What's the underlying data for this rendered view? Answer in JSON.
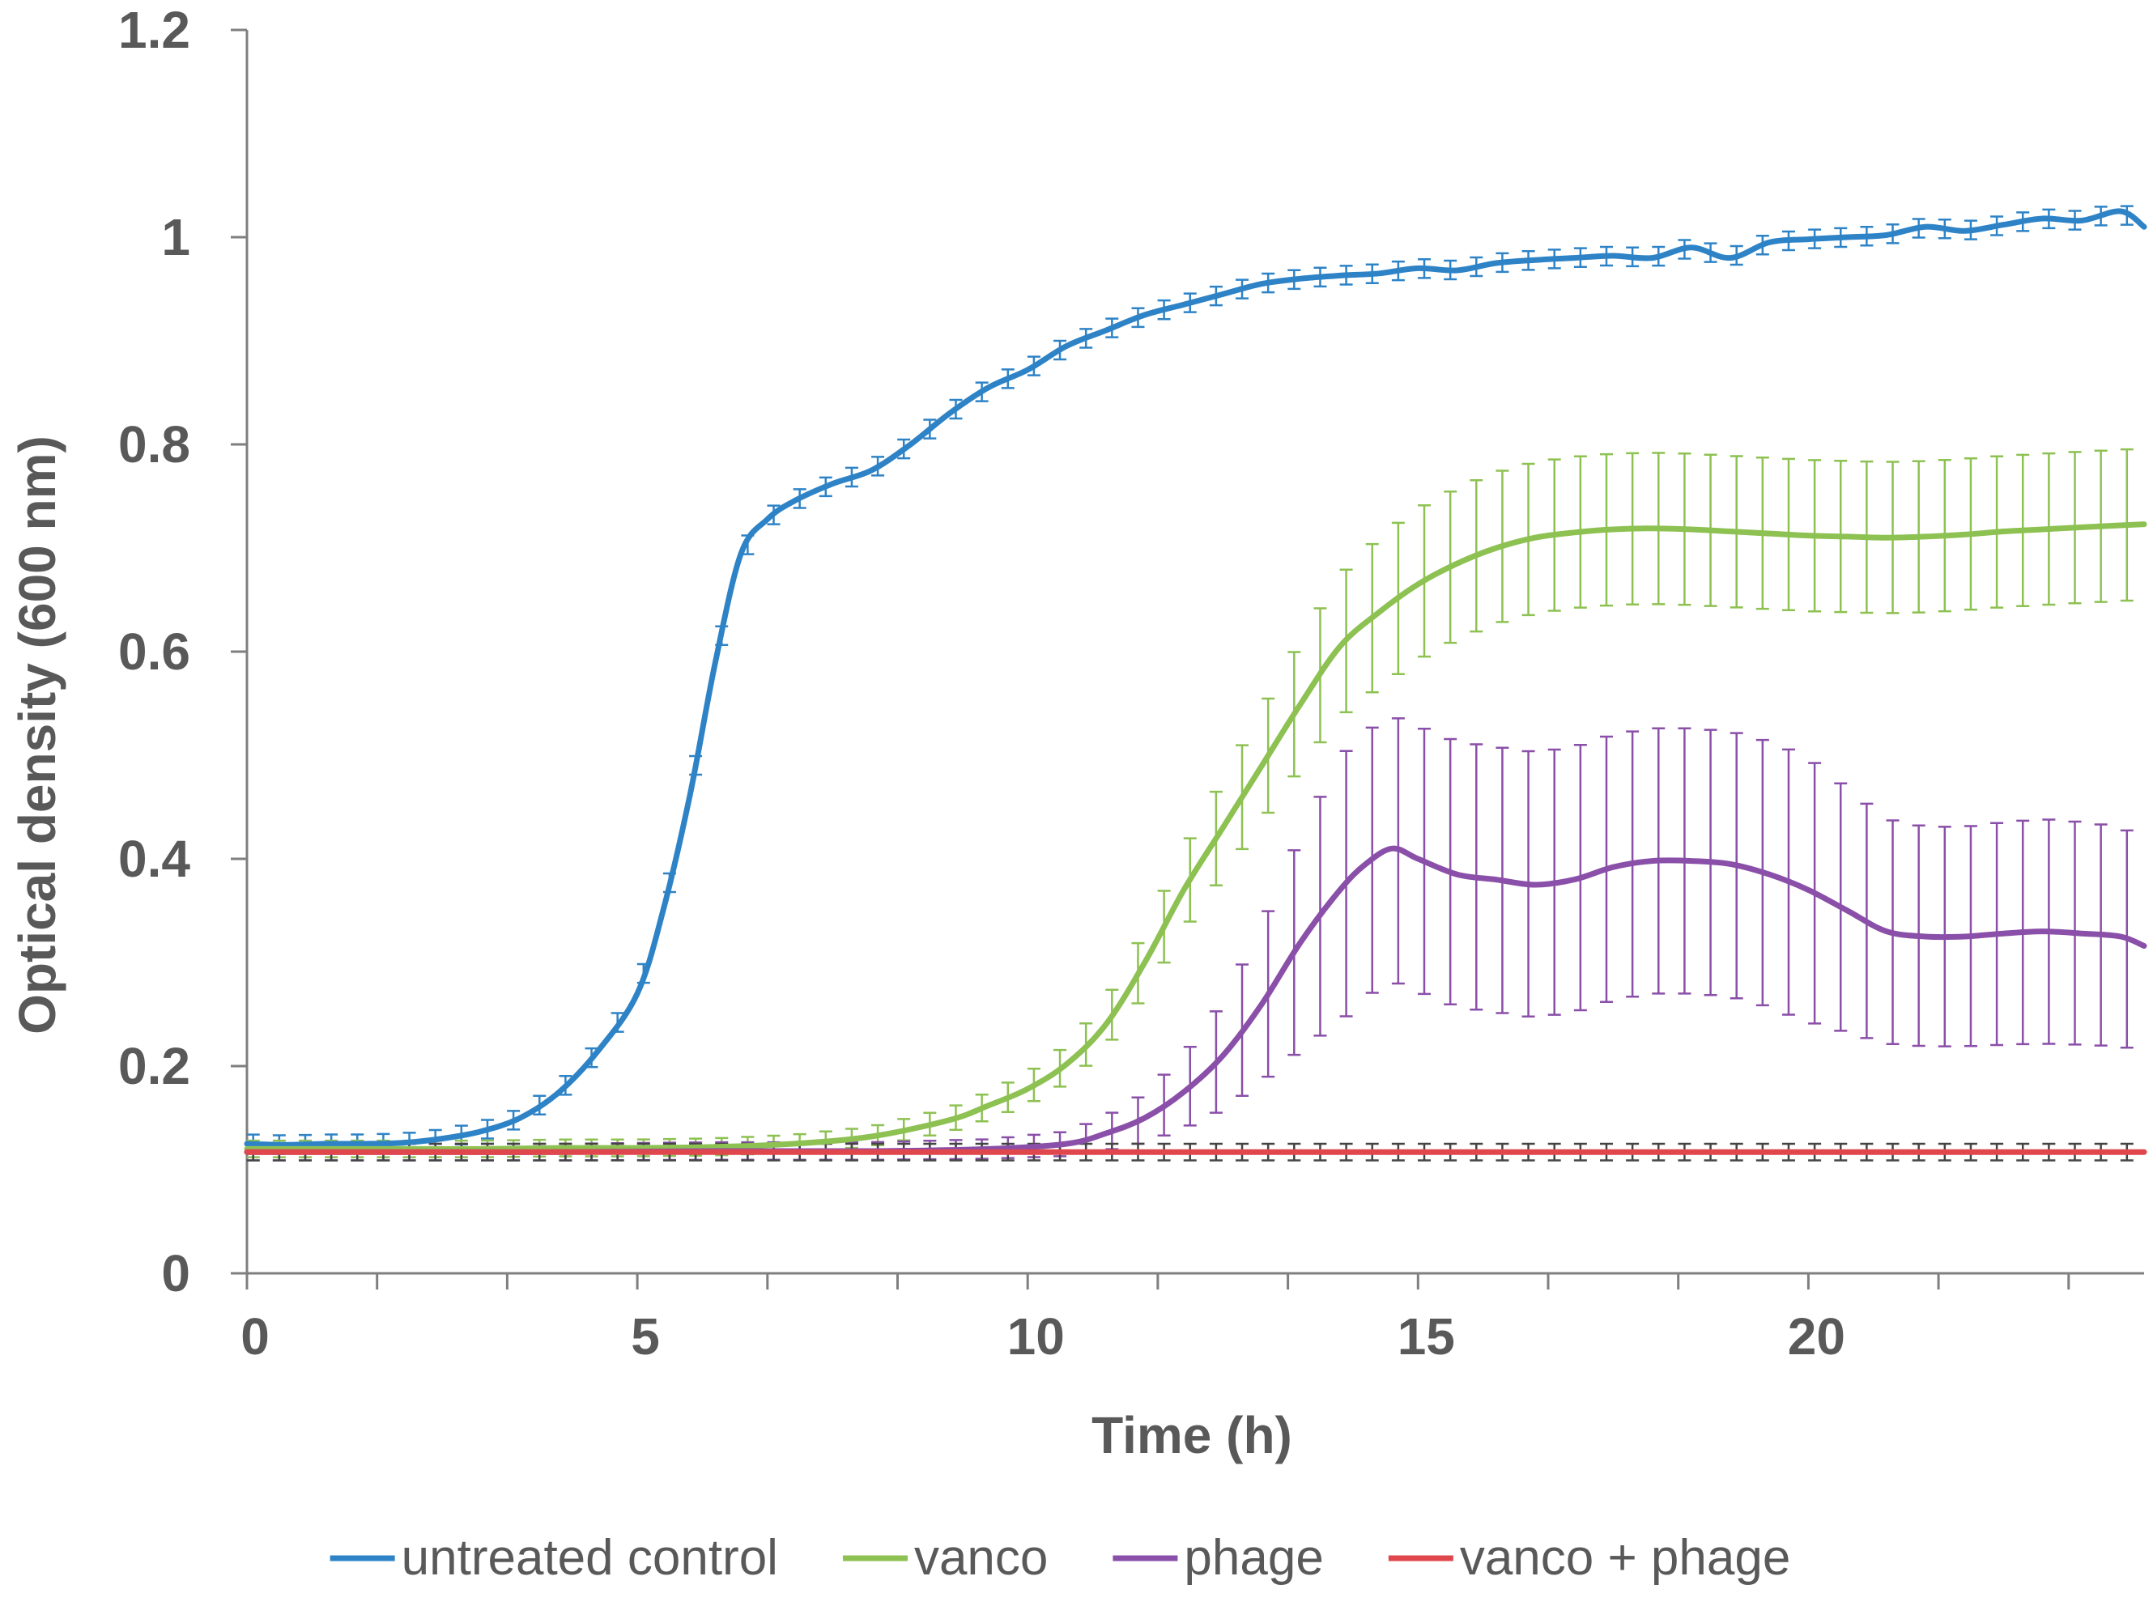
{
  "chart_data": {
    "type": "line",
    "title": "",
    "xlabel": "Time (h)",
    "ylabel": "Optical density (600 nm)",
    "xlim": [
      0,
      24.3
    ],
    "ylim": [
      0,
      1.2
    ],
    "xticks": [
      0,
      5,
      10,
      15,
      20
    ],
    "xtick_labels": [
      "0",
      "5",
      "10",
      "15",
      "20"
    ],
    "yticks": [
      0,
      0.2,
      0.4,
      0.6,
      0.8,
      1,
      1.2
    ],
    "ytick_labels": [
      "0",
      "0.2",
      "0.4",
      "0.6",
      "0.8",
      "1",
      "1.2"
    ],
    "grid": false,
    "legend_position": "bottom",
    "series": [
      {
        "name": "untreated control",
        "color": "#2E83C6",
        "points": [
          [
            0,
            0.125
          ],
          [
            0.5,
            0.124
          ],
          [
            1,
            0.125
          ],
          [
            1.5,
            0.125
          ],
          [
            2,
            0.126
          ],
          [
            2.5,
            0.13
          ],
          [
            3,
            0.137
          ],
          [
            3.5,
            0.15
          ],
          [
            4,
            0.175
          ],
          [
            4.5,
            0.215
          ],
          [
            5,
            0.27
          ],
          [
            5.33,
            0.35
          ],
          [
            5.67,
            0.46
          ],
          [
            6,
            0.59
          ],
          [
            6.33,
            0.695
          ],
          [
            6.67,
            0.728
          ],
          [
            7,
            0.745
          ],
          [
            7.5,
            0.762
          ],
          [
            8,
            0.775
          ],
          [
            8.5,
            0.8
          ],
          [
            9,
            0.83
          ],
          [
            9.5,
            0.855
          ],
          [
            10,
            0.872
          ],
          [
            10.5,
            0.895
          ],
          [
            11,
            0.91
          ],
          [
            11.5,
            0.925
          ],
          [
            12,
            0.935
          ],
          [
            12.5,
            0.945
          ],
          [
            13,
            0.955
          ],
          [
            13.5,
            0.96
          ],
          [
            14,
            0.963
          ],
          [
            14.5,
            0.965
          ],
          [
            15,
            0.97
          ],
          [
            15.5,
            0.968
          ],
          [
            16,
            0.975
          ],
          [
            16.5,
            0.978
          ],
          [
            17,
            0.98
          ],
          [
            17.5,
            0.982
          ],
          [
            18,
            0.98
          ],
          [
            18.5,
            0.99
          ],
          [
            19,
            0.98
          ],
          [
            19.5,
            0.995
          ],
          [
            20,
            0.998
          ],
          [
            20.5,
            1.0
          ],
          [
            21,
            1.002
          ],
          [
            21.5,
            1.01
          ],
          [
            22,
            1.006
          ],
          [
            22.5,
            1.012
          ],
          [
            23,
            1.018
          ],
          [
            23.5,
            1.016
          ],
          [
            24,
            1.025
          ],
          [
            24.3,
            1.01
          ]
        ],
        "error": 0.009
      },
      {
        "name": "vanco",
        "color": "#8DC152",
        "points": [
          [
            0,
            0.12
          ],
          [
            1,
            0.12
          ],
          [
            2,
            0.12
          ],
          [
            3,
            0.12
          ],
          [
            4,
            0.121
          ],
          [
            5,
            0.121
          ],
          [
            6,
            0.122
          ],
          [
            7,
            0.125
          ],
          [
            8,
            0.132
          ],
          [
            9,
            0.148
          ],
          [
            9.5,
            0.162
          ],
          [
            10,
            0.178
          ],
          [
            10.5,
            0.202
          ],
          [
            11,
            0.24
          ],
          [
            11.5,
            0.3
          ],
          [
            12,
            0.37
          ],
          [
            12.5,
            0.43
          ],
          [
            13,
            0.49
          ],
          [
            13.5,
            0.55
          ],
          [
            14,
            0.605
          ],
          [
            14.5,
            0.638
          ],
          [
            15,
            0.665
          ],
          [
            15.5,
            0.685
          ],
          [
            16,
            0.7
          ],
          [
            16.5,
            0.71
          ],
          [
            17,
            0.715
          ],
          [
            17.5,
            0.718
          ],
          [
            18,
            0.719
          ],
          [
            18.5,
            0.718
          ],
          [
            19,
            0.716
          ],
          [
            19.5,
            0.714
          ],
          [
            20,
            0.712
          ],
          [
            20.5,
            0.711
          ],
          [
            21,
            0.71
          ],
          [
            21.5,
            0.711
          ],
          [
            22,
            0.713
          ],
          [
            22.5,
            0.716
          ],
          [
            23,
            0.718
          ],
          [
            23.5,
            0.72
          ],
          [
            24.3,
            0.723
          ]
        ],
        "error_max": 0.065
      },
      {
        "name": "phage",
        "color": "#8A4FA8",
        "points": [
          [
            0,
            0.117
          ],
          [
            2,
            0.117
          ],
          [
            4,
            0.117
          ],
          [
            6,
            0.118
          ],
          [
            8,
            0.118
          ],
          [
            9.5,
            0.12
          ],
          [
            10.5,
            0.125
          ],
          [
            11,
            0.135
          ],
          [
            11.5,
            0.15
          ],
          [
            12,
            0.175
          ],
          [
            12.5,
            0.21
          ],
          [
            13,
            0.26
          ],
          [
            13.5,
            0.32
          ],
          [
            14,
            0.37
          ],
          [
            14.33,
            0.395
          ],
          [
            14.67,
            0.41
          ],
          [
            15,
            0.4
          ],
          [
            15.5,
            0.385
          ],
          [
            16,
            0.38
          ],
          [
            16.5,
            0.375
          ],
          [
            17,
            0.38
          ],
          [
            17.5,
            0.392
          ],
          [
            18,
            0.398
          ],
          [
            18.5,
            0.398
          ],
          [
            19,
            0.395
          ],
          [
            19.5,
            0.385
          ],
          [
            20,
            0.37
          ],
          [
            20.5,
            0.35
          ],
          [
            21,
            0.33
          ],
          [
            21.5,
            0.325
          ],
          [
            22,
            0.325
          ],
          [
            22.5,
            0.328
          ],
          [
            23,
            0.33
          ],
          [
            23.5,
            0.328
          ],
          [
            24,
            0.325
          ],
          [
            24.3,
            0.316
          ]
        ],
        "error_max": 0.12
      },
      {
        "name": "vanco + phage",
        "color": "#E0474C",
        "points": [
          [
            0,
            0.117
          ],
          [
            2,
            0.117
          ],
          [
            4,
            0.117
          ],
          [
            6,
            0.117
          ],
          [
            8,
            0.117
          ],
          [
            10,
            0.117
          ],
          [
            12,
            0.117
          ],
          [
            14,
            0.117
          ],
          [
            16,
            0.117
          ],
          [
            18,
            0.117
          ],
          [
            20,
            0.117
          ],
          [
            22,
            0.117
          ],
          [
            24.3,
            0.117
          ]
        ],
        "error": 0.008
      }
    ]
  }
}
